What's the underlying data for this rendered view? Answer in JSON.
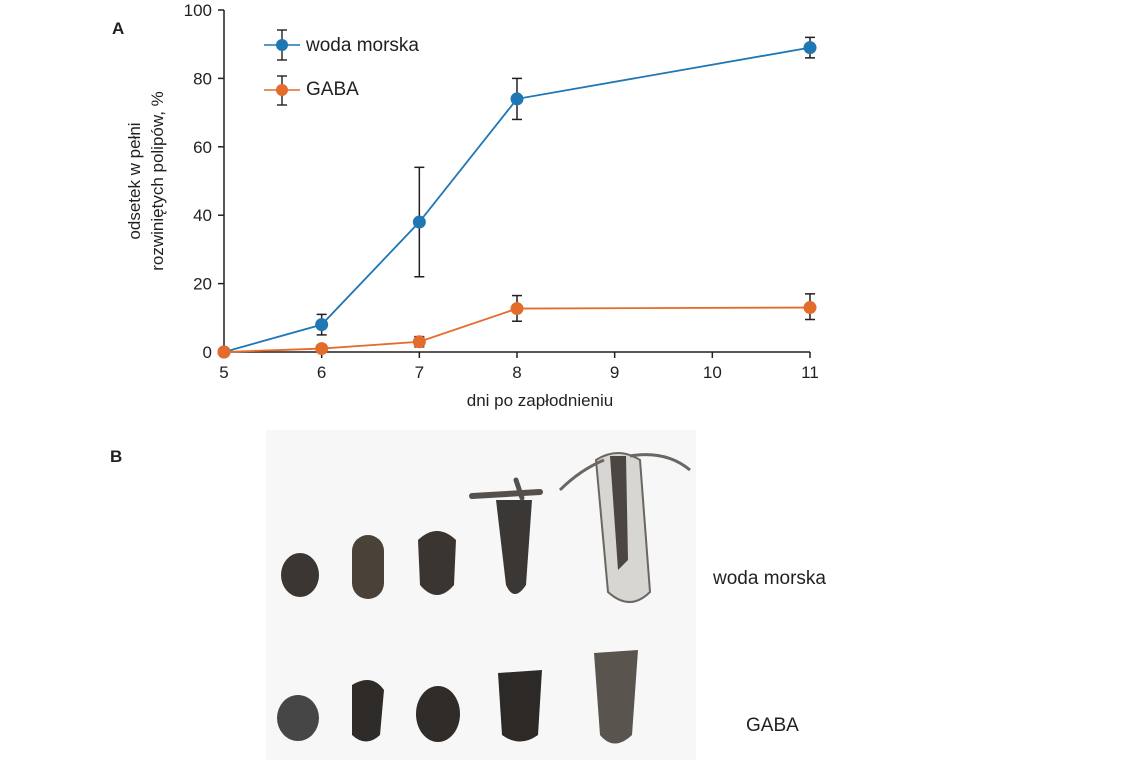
{
  "chart_data": {
    "type": "line",
    "panel_label": "A",
    "x": [
      5,
      6,
      7,
      8,
      11
    ],
    "x_ticks": [
      "5",
      "6",
      "7",
      "8",
      "9",
      "10",
      "11"
    ],
    "x_tick_values": [
      5,
      6,
      7,
      8,
      9,
      10,
      11
    ],
    "y_ticks": [
      "0",
      "20",
      "40",
      "60",
      "80",
      "100"
    ],
    "y_tick_values": [
      0,
      20,
      40,
      60,
      80,
      100
    ],
    "xlim": [
      5,
      11
    ],
    "ylim": [
      0,
      100
    ],
    "xlabel": "dni po zapłodnieniu",
    "ylabel_line1": "odsetek w pełni",
    "ylabel_line2": "rozwiniętych polipów, %",
    "legend_position": "top-left",
    "grid": false,
    "series": [
      {
        "name": "woda morska",
        "color": "#1f77b4",
        "values": [
          0,
          8,
          38,
          74,
          89
        ],
        "err_low": [
          0,
          5,
          22,
          68,
          86
        ],
        "err_high": [
          0,
          11,
          54,
          80,
          92
        ]
      },
      {
        "name": "GABA",
        "color": "#e36c2c",
        "values": [
          0,
          1,
          3,
          12.7,
          13
        ],
        "err_low": [
          0,
          0,
          1.5,
          9,
          9.5
        ],
        "err_high": [
          0,
          2,
          4.5,
          16.5,
          17
        ]
      }
    ]
  },
  "panel_b": {
    "label": "B",
    "row_labels": [
      "woda morska",
      "GABA"
    ]
  }
}
